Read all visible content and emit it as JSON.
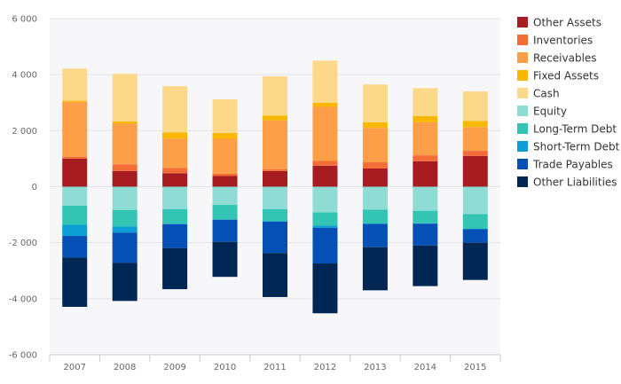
{
  "chart_data": {
    "type": "bar",
    "stacked": true,
    "categories": [
      "2007",
      "2008",
      "2009",
      "2010",
      "2011",
      "2012",
      "2013",
      "2014",
      "2015"
    ],
    "ylim": [
      -6000,
      6000
    ],
    "yticks": [
      -6000,
      -4000,
      -2000,
      0,
      2000,
      4000,
      6000
    ],
    "ytick_labels": [
      "-6 000",
      "-4 000",
      "-2 000",
      "0",
      "2 000",
      "4 000",
      "6 000"
    ],
    "grid": true,
    "legend_position": "right",
    "title": "",
    "xlabel": "",
    "ylabel": "",
    "series": [
      {
        "name": "Other Assets",
        "color": "#a61c21",
        "values": [
          1000,
          560,
          480,
          380,
          560,
          750,
          650,
          910,
          1100
        ]
      },
      {
        "name": "Inventories",
        "color": "#f46d38",
        "values": [
          70,
          240,
          190,
          80,
          60,
          170,
          220,
          210,
          180
        ]
      },
      {
        "name": "Receivables",
        "color": "#fd9e48",
        "values": [
          1960,
          1450,
          1050,
          1250,
          1750,
          1930,
          1230,
          1180,
          850
        ]
      },
      {
        "name": "Fixed Assets",
        "color": "#f8b800",
        "values": [
          40,
          80,
          220,
          210,
          170,
          150,
          200,
          220,
          220
        ]
      },
      {
        "name": "Cash",
        "color": "#fcd98a",
        "values": [
          1150,
          1700,
          1650,
          1200,
          1400,
          1500,
          1350,
          1000,
          1050
        ]
      },
      {
        "name": "Equity",
        "color": "#8fdcd4",
        "values": [
          -680,
          -830,
          -800,
          -650,
          -800,
          -920,
          -820,
          -860,
          -980
        ]
      },
      {
        "name": "Long-Term Debt",
        "color": "#33c4b3",
        "values": [
          -680,
          -590,
          -520,
          -520,
          -430,
          -470,
          -500,
          -450,
          -520
        ]
      },
      {
        "name": "Short-Term Debt",
        "color": "#0b9fd5",
        "values": [
          -400,
          -220,
          -20,
          -10,
          -20,
          -80,
          -10,
          -10,
          -20
        ]
      },
      {
        "name": "Trade Payables",
        "color": "#0450b4",
        "values": [
          -770,
          -1080,
          -850,
          -790,
          -1120,
          -1270,
          -830,
          -780,
          -480
        ]
      },
      {
        "name": "Other Liabilities",
        "color": "#002753",
        "values": [
          -1760,
          -1360,
          -1470,
          -1250,
          -1570,
          -1780,
          -1540,
          -1450,
          -1330
        ]
      }
    ]
  }
}
